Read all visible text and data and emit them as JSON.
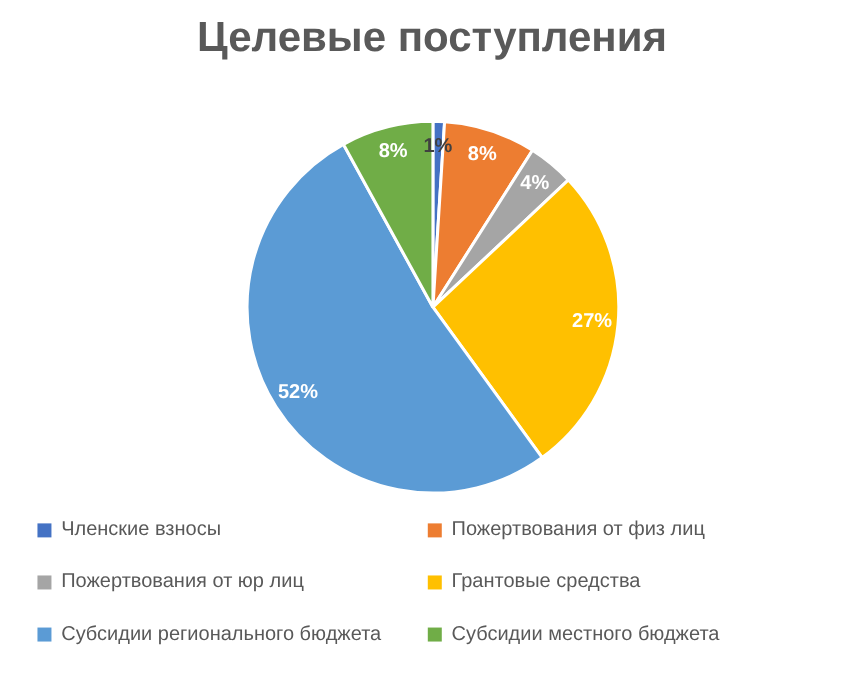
{
  "chart_data": {
    "type": "pie",
    "title": "Целевые поступления",
    "categories": [
      "Членские взносы",
      "Пожертвования от физ лиц",
      "Пожертвования от юр лиц",
      "Грантовые средства",
      "Субсидии регионального бюджета",
      "Субсидии местного бюджета"
    ],
    "values": [
      1,
      8,
      4,
      27,
      52,
      8
    ],
    "colors": [
      "#4472c4",
      "#ed7d31",
      "#a5a5a5",
      "#ffc000",
      "#5b9bd5",
      "#70ad47"
    ],
    "value_labels": [
      "1%",
      "8%",
      "4%",
      "27%",
      "52%",
      "8%"
    ],
    "legend": "bottom"
  }
}
